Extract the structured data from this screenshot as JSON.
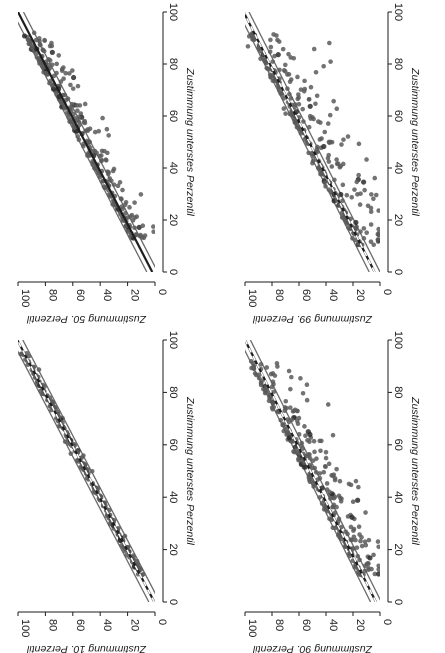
{
  "figure": {
    "background": "#ffffff",
    "point_color": "#5a5a5a",
    "dark_point_color": "#2a2a2a",
    "line_color": "#1e1e1e",
    "band_color": "#6a6a6a",
    "dashed_color": "#ffffff"
  },
  "chart_data": [
    {
      "type": "scatter",
      "position": "top-left",
      "xlabel": "Zustimmung unterstes Perzentil",
      "ylabel": "Zustimmung 50. Perzentil",
      "xlim": [
        0,
        100
      ],
      "ylim": [
        0,
        100
      ],
      "x_ticks": [
        "0",
        "20",
        "40",
        "60",
        "80",
        "100"
      ],
      "y_ticks": [
        "0",
        "20",
        "40",
        "60",
        "80",
        "100"
      ],
      "grid": false,
      "spread": 8,
      "fit_line": {
        "slope": 0.98,
        "intercept": 2
      },
      "dashed_line": false,
      "point_count": 300,
      "points_range": [
        12,
        92
      ]
    },
    {
      "type": "scatter",
      "position": "top-right",
      "xlabel": "Zustimmung unterstes Perzentil",
      "ylabel": "Zustimmung 99. Perzentil",
      "xlim": [
        0,
        100
      ],
      "ylim": [
        0,
        100
      ],
      "x_ticks": [
        "0",
        "20",
        "40",
        "60",
        "80",
        "100"
      ],
      "y_ticks": [
        "0",
        "20",
        "40",
        "60",
        "80",
        "100"
      ],
      "grid": false,
      "spread": 16,
      "fit_line": {
        "slope": 0.97,
        "intercept": 4
      },
      "dashed_line": true,
      "point_count": 320,
      "points_range": [
        10,
        92
      ]
    },
    {
      "type": "scatter",
      "position": "bottom-left",
      "xlabel": "Zustimmung unterstes Perzentil",
      "ylabel": "Zustimmung 10. Perzentil",
      "xlim": [
        0,
        100
      ],
      "ylim": [
        0,
        100
      ],
      "x_ticks": [
        "0",
        "20",
        "40",
        "60",
        "80",
        "100"
      ],
      "y_ticks": [
        "0",
        "20",
        "40",
        "60",
        "80",
        "100"
      ],
      "grid": false,
      "spread": 1.5,
      "fit_line": {
        "slope": 1.0,
        "intercept": 0.5
      },
      "dashed_line": true,
      "point_count": 260,
      "points_range": [
        10,
        95
      ]
    },
    {
      "type": "scatter",
      "position": "bottom-right",
      "xlabel": "Zustimmung unterstes Perzentil",
      "ylabel": "Zustimmung 90. Perzentil",
      "xlim": [
        0,
        100
      ],
      "ylim": [
        0,
        100
      ],
      "x_ticks": [
        "0",
        "20",
        "40",
        "60",
        "80",
        "100"
      ],
      "y_ticks": [
        "0",
        "20",
        "40",
        "60",
        "80",
        "100"
      ],
      "grid": false,
      "spread": 13,
      "fit_line": {
        "slope": 0.97,
        "intercept": 3
      },
      "dashed_line": true,
      "point_count": 320,
      "points_range": [
        10,
        92
      ]
    }
  ]
}
